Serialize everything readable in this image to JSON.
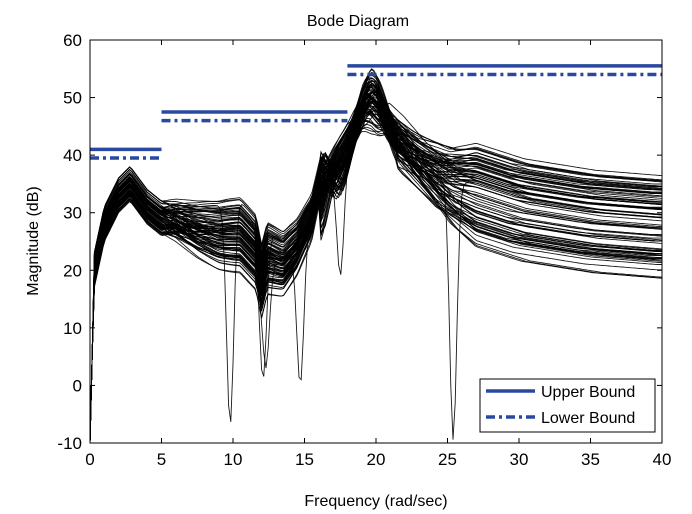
{
  "chart_data": {
    "type": "line",
    "title": "Bode Diagram",
    "xlabel": "Frequency (rad/sec)",
    "ylabel": "Magnitude (dB)",
    "xlim": [
      0,
      40
    ],
    "ylim": [
      -10,
      60
    ],
    "xticks": [
      0,
      5,
      10,
      15,
      20,
      25,
      30,
      35,
      40
    ],
    "yticks": [
      -10,
      0,
      10,
      20,
      30,
      40,
      50,
      60
    ],
    "grid": false,
    "legend_position": "bottom-right",
    "legend": [
      {
        "label": "Upper Bound",
        "style": "solid",
        "color": "#2a48a0"
      },
      {
        "label": "Lower Bound",
        "style": "dash-dot",
        "color": "#2a48a0"
      }
    ],
    "bounds": [
      {
        "name": "Upper Bound",
        "segments": [
          {
            "x": [
              0,
              5
            ],
            "y": 41
          },
          {
            "x": [
              5,
              18
            ],
            "y": 47.5
          },
          {
            "x": [
              18,
              40
            ],
            "y": 55.5
          }
        ]
      },
      {
        "name": "Lower Bound",
        "segments": [
          {
            "x": [
              0,
              5
            ],
            "y": 39.5
          },
          {
            "x": [
              5,
              18
            ],
            "y": 46
          },
          {
            "x": [
              18,
              40
            ],
            "y": 54
          }
        ]
      }
    ],
    "response_family": {
      "color": "#000000",
      "count": 90,
      "frequency_knots": [
        0,
        0.3,
        1,
        2,
        2.8,
        4,
        5,
        6,
        7.5,
        9,
        10.5,
        11.6,
        12,
        12.4,
        13.5,
        14.5,
        15.5,
        16.3,
        17,
        18,
        19,
        20,
        21,
        22.5,
        25,
        30,
        35,
        40
      ],
      "nominal_magnitude_db": [
        -10,
        20,
        28,
        33,
        35,
        31,
        29,
        28.5,
        27,
        26,
        26,
        23,
        18,
        22,
        21,
        24,
        29,
        38,
        35,
        40,
        44,
        46,
        44,
        40,
        35,
        31,
        29,
        28
      ],
      "notches": [
        {
          "x": 9.8,
          "y": -7
        },
        {
          "x": 12.1,
          "y": 1
        },
        {
          "x": 12.3,
          "y": 3
        },
        {
          "x": 14.7,
          "y": 0
        },
        {
          "x": 17.5,
          "y": 19
        },
        {
          "x": 25.4,
          "y": -9.5
        }
      ]
    }
  }
}
